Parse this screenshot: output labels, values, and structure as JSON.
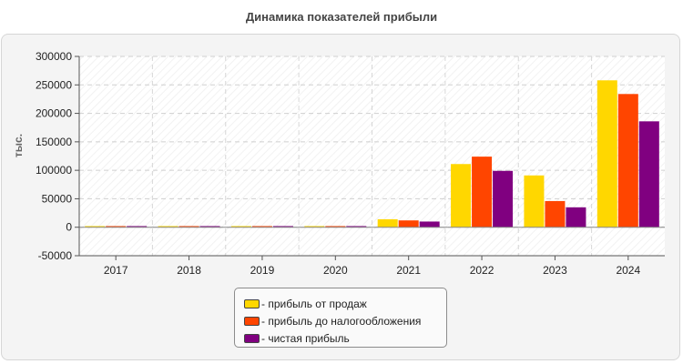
{
  "chart_data": {
    "type": "bar",
    "title": "Динамика показателей прибыли",
    "ylabel": "тыс.",
    "xlabel": "",
    "ylim": [
      -50000,
      300000
    ],
    "yticks": [
      "300000",
      "250000",
      "200000",
      "150000",
      "100000",
      "50000",
      "0",
      "-50000"
    ],
    "grid": true,
    "legend_position": "bottom",
    "categories": [
      "2017",
      "2018",
      "2019",
      "2020",
      "2021",
      "2022",
      "2023",
      "2024"
    ],
    "series": [
      {
        "name": "- прибыль от продаж",
        "color": "#ffd700",
        "values": [
          2000,
          2000,
          2000,
          2000,
          14000,
          111000,
          91000,
          258000
        ]
      },
      {
        "name": "- прибыль до налогообложения",
        "color": "#ff4500",
        "values": [
          2000,
          2000,
          2000,
          2000,
          12000,
          124000,
          46000,
          234000
        ]
      },
      {
        "name": "- чистая прибыль",
        "color": "#800080",
        "values": [
          2000,
          2000,
          2000,
          2000,
          10000,
          99000,
          35000,
          186000
        ]
      }
    ]
  }
}
